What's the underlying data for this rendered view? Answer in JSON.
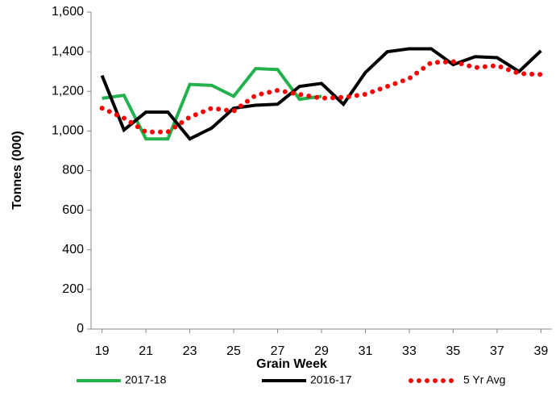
{
  "chart_data": {
    "type": "line",
    "x_label": "Grain Week",
    "y_label": "Tonnes (000)",
    "x": [
      19,
      20,
      21,
      22,
      23,
      24,
      25,
      26,
      27,
      28,
      29,
      30,
      31,
      32,
      33,
      34,
      35,
      36,
      37,
      38,
      39
    ],
    "xlim": [
      18.5,
      39.5
    ],
    "xticks": [
      19,
      21,
      23,
      25,
      27,
      29,
      31,
      33,
      35,
      37,
      39
    ],
    "ylim": [
      0,
      1600
    ],
    "yticks": [
      0,
      200,
      400,
      600,
      800,
      {
        "value": 1000,
        "label": "1,000"
      },
      {
        "value": 1200,
        "label": "1,200"
      },
      {
        "value": 1400,
        "label": "1,400"
      },
      {
        "value": 1600,
        "label": "1,600"
      }
    ],
    "grid": false,
    "legend": "bottom",
    "series": [
      {
        "name": "2017-18",
        "color": "#22b14c",
        "style": "solid",
        "values": [
          1165,
          1180,
          960,
          960,
          1235,
          1230,
          1175,
          1315,
          1310,
          1160,
          1175,
          null,
          null,
          null,
          null,
          null,
          null,
          null,
          null,
          null,
          null
        ]
      },
      {
        "name": "2016-17",
        "color": "#000000",
        "style": "solid",
        "values": [
          1280,
          1005,
          1095,
          1095,
          960,
          1015,
          1115,
          1130,
          1135,
          1225,
          1240,
          1135,
          1295,
          1400,
          1415,
          1415,
          1335,
          1375,
          1370,
          1300,
          1405
        ]
      },
      {
        "name": "5 Yr Avg",
        "color": "#ff0000",
        "style": "dotted",
        "values": [
          1115,
          1065,
          995,
          995,
          1070,
          1115,
          1100,
          1180,
          1205,
          1185,
          1165,
          1170,
          1185,
          1225,
          1265,
          1345,
          1350,
          1320,
          1330,
          1290,
          1285
        ]
      }
    ]
  }
}
